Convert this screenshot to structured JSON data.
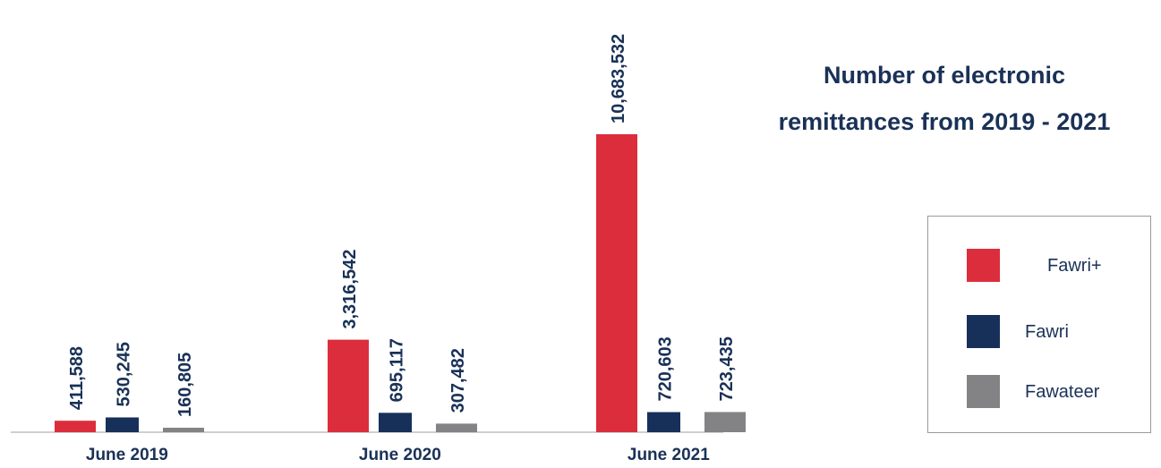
{
  "title": "Number of electronic remittances from 2019 - 2021",
  "title_lines": [
    "Number of electronic",
    "remittances from 2019 - 2021"
  ],
  "chart_data": {
    "type": "bar",
    "title": "Number of electronic remittances from 2019 - 2021",
    "xlabel": "",
    "ylabel": "",
    "categories": [
      "June 2019",
      "June 2020",
      "June 2021"
    ],
    "series": [
      {
        "name": "Fawri+",
        "color": "#dc2d3c",
        "values": [
          411588,
          3316542,
          10683532
        ],
        "labels": [
          "411,588",
          "3,316,542",
          "10,683,532"
        ]
      },
      {
        "name": "Fawri",
        "color": "#17305a",
        "values": [
          530245,
          695117,
          720603
        ],
        "labels": [
          "530,245",
          "695,117",
          "720,603"
        ]
      },
      {
        "name": "Fawateer",
        "color": "#838386",
        "values": [
          160805,
          307482,
          723435
        ],
        "labels": [
          "160,805",
          "307,482",
          "723,435"
        ]
      }
    ],
    "ylim": [
      0,
      10683532
    ],
    "grid": false,
    "legend_position": "right"
  },
  "legend": {
    "items": [
      {
        "label": "Fawri+",
        "color": "#dc2d3c"
      },
      {
        "label": "Fawri",
        "color": "#17305a"
      },
      {
        "label": "Fawateer",
        "color": "#838386"
      }
    ]
  }
}
